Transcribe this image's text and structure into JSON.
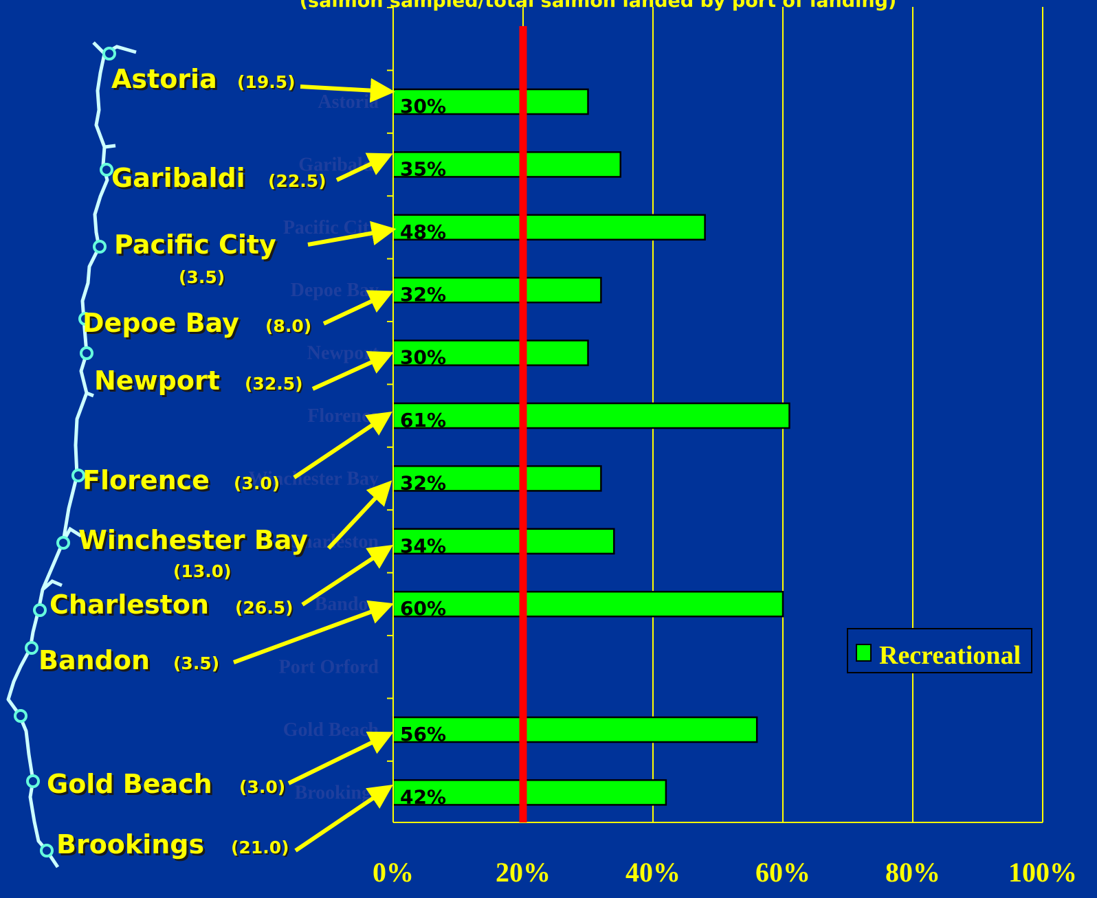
{
  "subtitle": "(salmon sampled/total salmon landed by port of landing)",
  "chart_data": {
    "type": "bar",
    "orientation": "horizontal",
    "categories": [
      "Astoria",
      "Garibaldi",
      "Pacific City",
      "Depoe Bay",
      "Newport",
      "Florence",
      "Winchester Bay",
      "Charleston",
      "Bandon",
      "Port Orford",
      "Gold Beach",
      "Brookings"
    ],
    "series": [
      {
        "name": "Recreational",
        "values": [
          30,
          35,
          48,
          32,
          30,
          61,
          32,
          34,
          60,
          null,
          56,
          42
        ],
        "color": "#00ff00"
      }
    ],
    "bar_labels": [
      "30%",
      "35%",
      "48%",
      "32%",
      "30%",
      "61%",
      "32%",
      "34%",
      "60%",
      "",
      "56%",
      "42%"
    ],
    "xlim": [
      0,
      100
    ],
    "x_ticks": [
      "0%",
      "20%",
      "40%",
      "60%",
      "80%",
      "100%"
    ],
    "reference_line": {
      "value": 20,
      "color": "#ff0000"
    },
    "grid": true,
    "legend_position": "lower-right"
  },
  "map": {
    "ports": [
      {
        "name": "Astoria",
        "value": "(19.5)"
      },
      {
        "name": "Garibaldi",
        "value": "(22.5)"
      },
      {
        "name": "Pacific City",
        "value": "(3.5)"
      },
      {
        "name": "Depoe Bay",
        "value": "(8.0)"
      },
      {
        "name": "Newport",
        "value": "(32.5)"
      },
      {
        "name": "Florence",
        "value": "(3.0)"
      },
      {
        "name": "Winchester Bay",
        "value": "(13.0)"
      },
      {
        "name": "Charleston",
        "value": "(26.5)"
      },
      {
        "name": "Bandon",
        "value": "(3.5)"
      },
      {
        "name": "Gold Beach",
        "value": "(3.0)"
      },
      {
        "name": "Brookings",
        "value": "(21.0)"
      }
    ]
  },
  "colors": {
    "background": "#003399",
    "accent": "#ffff00",
    "bar": "#00ff00",
    "reference": "#ff0000",
    "coast": "#ccffff"
  }
}
